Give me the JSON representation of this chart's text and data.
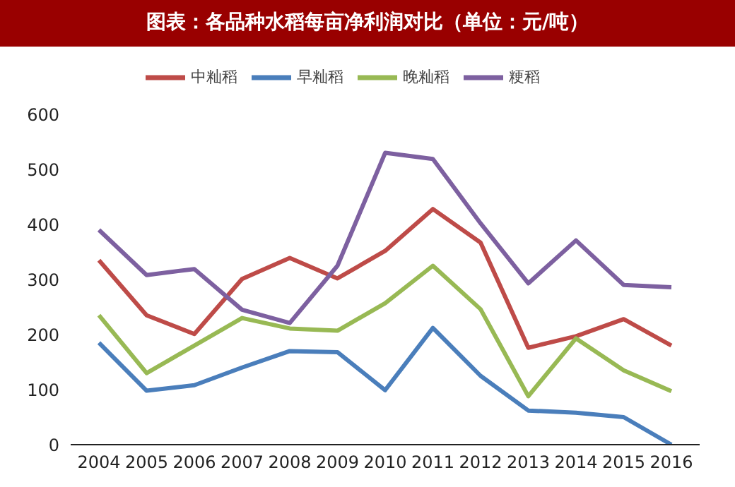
{
  "chart_data": {
    "type": "line",
    "title": "图表：各品种水稻每亩净利润对比（单位：元/吨）",
    "categories": [
      "2004",
      "2005",
      "2006",
      "2007",
      "2008",
      "2009",
      "2010",
      "2011",
      "2012",
      "2013",
      "2014",
      "2015",
      "2016"
    ],
    "series": [
      {
        "name": "早籼稻",
        "color": "#4a7ebb",
        "values": [
          185,
          98,
          108,
          140,
          170,
          168,
          99,
          212,
          125,
          62,
          58,
          50,
          0
        ]
      },
      {
        "name": "中籼稻",
        "color": "#be4b48",
        "values": [
          335,
          235,
          201,
          301,
          339,
          302,
          352,
          428,
          367,
          176,
          197,
          228,
          180
        ]
      },
      {
        "name": "晚籼稻",
        "color": "#98b954",
        "values": [
          235,
          130,
          180,
          230,
          211,
          207,
          257,
          325,
          246,
          88,
          193,
          135,
          97
        ]
      },
      {
        "name": "粳稻",
        "color": "#7d60a0",
        "values": [
          390,
          308,
          319,
          245,
          221,
          325,
          530,
          519,
          402,
          293,
          371,
          290,
          286
        ]
      }
    ],
    "ylim": [
      0,
      600
    ],
    "yticks": [
      0,
      100,
      200,
      300,
      400,
      500,
      600
    ],
    "legend": "top",
    "marker": "none",
    "line_style": "solid"
  }
}
